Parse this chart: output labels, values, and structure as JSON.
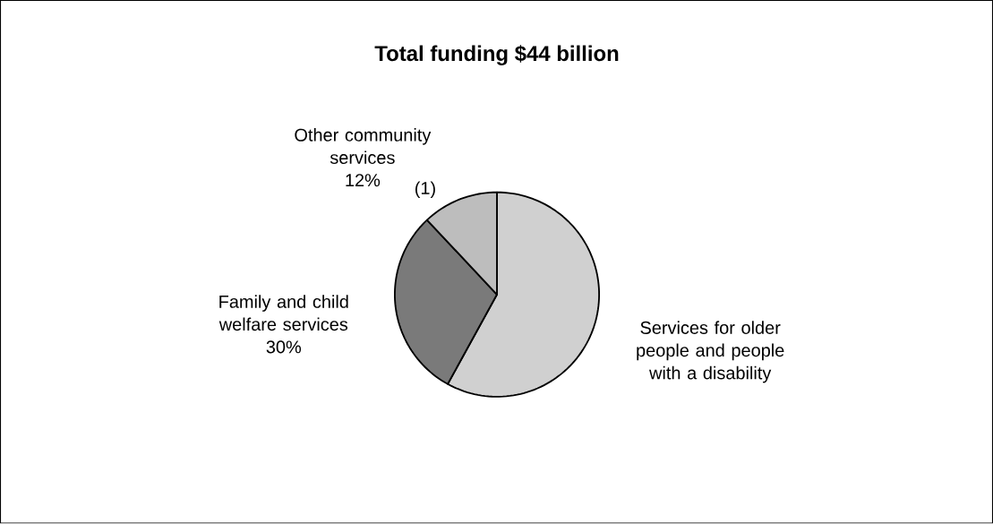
{
  "chart_data": {
    "type": "pie",
    "title": "Total funding $44 billion",
    "categories": [
      "Services for older people and people with a disability",
      "Family and child welfare services",
      "Other community services"
    ],
    "values": [
      58,
      30,
      12
    ],
    "value_labels": [
      null,
      "30%",
      "12%"
    ],
    "colors": [
      "#d0d0d0",
      "#7a7a7a",
      "#bdbdbd"
    ],
    "annotations": [
      {
        "text": "(1)"
      }
    ]
  }
}
